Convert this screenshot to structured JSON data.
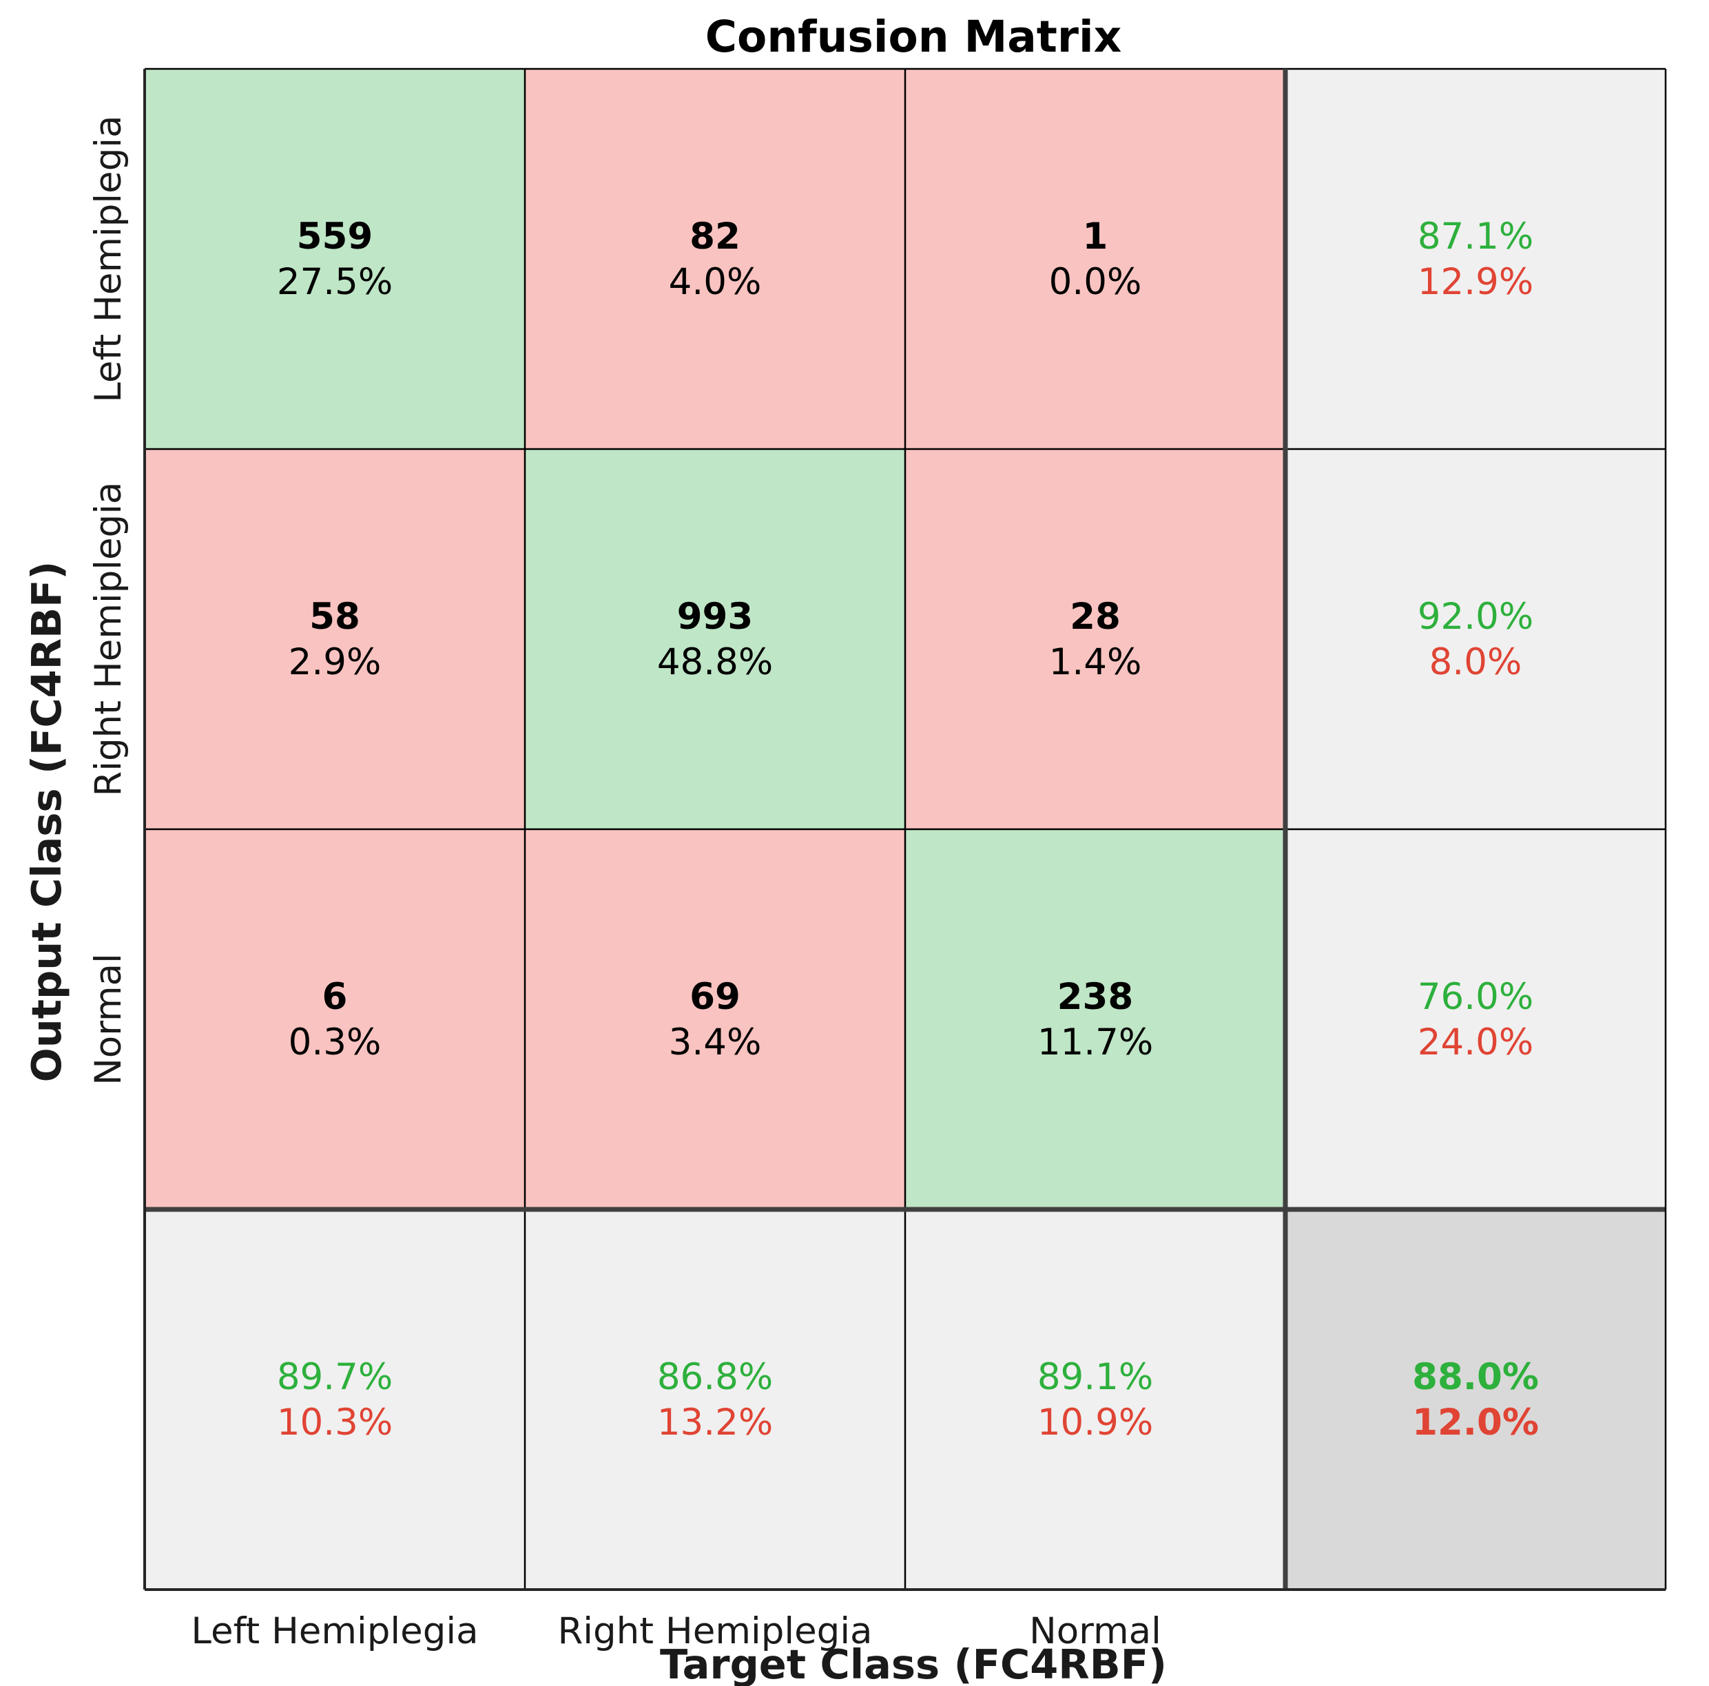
{
  "colors": {
    "correct_cell": "#bfe6c6",
    "incorrect_cell": "#f8c3c0",
    "summary_cell": "#f0f0f0",
    "overall_cell": "#d9d9d9",
    "good_text": "#2db03c",
    "bad_text": "#e04434",
    "grid_line": "#000000",
    "divider_line": "#404040"
  },
  "chart_data": {
    "type": "table",
    "subtype": "confusion-matrix",
    "title": "Confusion Matrix",
    "xlabel": "Target Class (FC4RBF)",
    "ylabel": "Output Class (FC4RBF)",
    "classes": [
      "Left Hemiplegia",
      "Right Hemiplegia",
      "Normal"
    ],
    "cells": [
      [
        {
          "count": "559",
          "pct": "27.5%"
        },
        {
          "count": "82",
          "pct": "4.0%"
        },
        {
          "count": "1",
          "pct": "0.0%"
        }
      ],
      [
        {
          "count": "58",
          "pct": "2.9%"
        },
        {
          "count": "993",
          "pct": "48.8%"
        },
        {
          "count": "28",
          "pct": "1.4%"
        }
      ],
      [
        {
          "count": "6",
          "pct": "0.3%"
        },
        {
          "count": "69",
          "pct": "3.4%"
        },
        {
          "count": "238",
          "pct": "11.7%"
        }
      ]
    ],
    "row_summary": [
      {
        "correct": "87.1%",
        "incorrect": "12.9%"
      },
      {
        "correct": "92.0%",
        "incorrect": "8.0%"
      },
      {
        "correct": "76.0%",
        "incorrect": "24.0%"
      }
    ],
    "col_summary": [
      {
        "correct": "89.7%",
        "incorrect": "10.3%"
      },
      {
        "correct": "86.8%",
        "incorrect": "13.2%"
      },
      {
        "correct": "89.1%",
        "incorrect": "10.9%"
      }
    ],
    "overall": {
      "correct": "88.0%",
      "incorrect": "12.0%"
    }
  }
}
